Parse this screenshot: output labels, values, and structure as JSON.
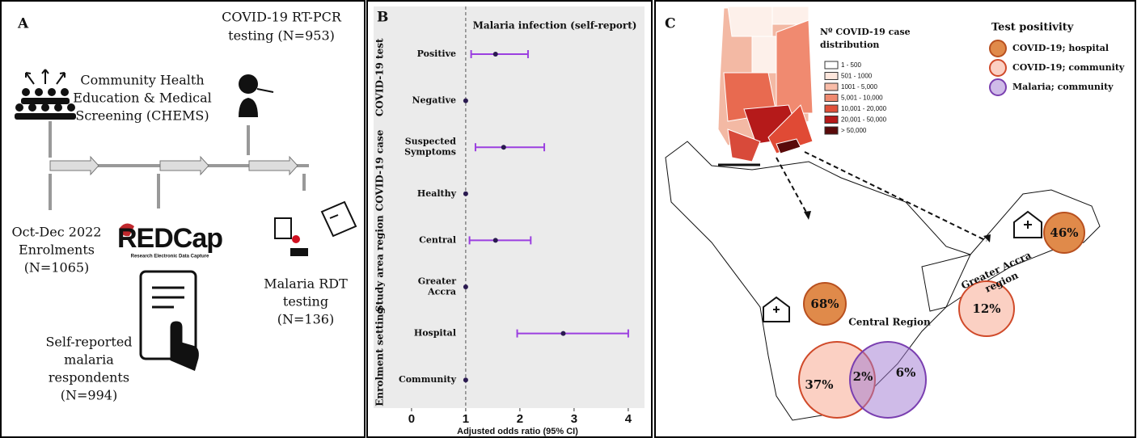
{
  "panel_a": {
    "letter": "A",
    "chems": [
      "Community Health",
      "Education & Medical",
      "Screening (CHEMS)"
    ],
    "pcr": [
      "COVID-19 RT-PCR",
      "testing (N=953)"
    ],
    "enrol": [
      "Oct-Dec 2022",
      "Enrolments",
      "(N=1065)"
    ],
    "redcap": "REDCap",
    "redcap_sub": "Research Electronic Data Capture",
    "rdt": [
      "Malaria RDT",
      "testing",
      "(N=136)"
    ],
    "self": [
      "Self-reported",
      "malaria",
      "respondents",
      "(N=994)"
    ]
  },
  "chart_data": {
    "type": "forest",
    "panel": "B",
    "title": "Malaria infection (self-report)",
    "x_label": "Adjusted odds ratio (95% CI)",
    "groups": [
      "COVID-19 test",
      "COVID-19 case",
      "Study area region",
      "Enrolment setting"
    ],
    "categories": [
      "Positive",
      "Negative",
      "Suspected Symptoms",
      "Healthy",
      "Central",
      "Greater Accra",
      "Hospital",
      "Community"
    ],
    "values": [
      1.55,
      1,
      1.7,
      1,
      1.55,
      1,
      2.8,
      1
    ],
    "lower": [
      1.1,
      null,
      1.18,
      null,
      1.07,
      null,
      1.95,
      null
    ],
    "upper": [
      2.15,
      null,
      2.45,
      null,
      2.2,
      null,
      4.0,
      null
    ],
    "reference": 1,
    "xlim": [
      -0.7,
      4.3
    ],
    "xticks": [
      0,
      1,
      2,
      3,
      4
    ],
    "color": "#9b3fe0",
    "point_color": "#2a1a50"
  },
  "panel_c": {
    "letter": "C",
    "map_legend_title": [
      "Nº COVID-19 case",
      "distribution"
    ],
    "map_legend": [
      "1 - 500",
      "501 - 1000",
      "1001 - 5,000",
      "5,001 - 10,000",
      "10,001 - 20,000",
      "20,001 - 50,000",
      "> 50,000"
    ],
    "legend_title": "Test positivity",
    "legend": [
      "COVID-19; hospital",
      "COVID-19; community",
      "Malaria; community"
    ],
    "central_label": "Central Region",
    "accra_label": [
      "Greater Accra",
      "region"
    ],
    "central": {
      "hospital": "68%",
      "community": "37%",
      "overlap": "2%",
      "malaria": "6%"
    },
    "accra": {
      "hospital": "46%",
      "community": "12%"
    }
  }
}
